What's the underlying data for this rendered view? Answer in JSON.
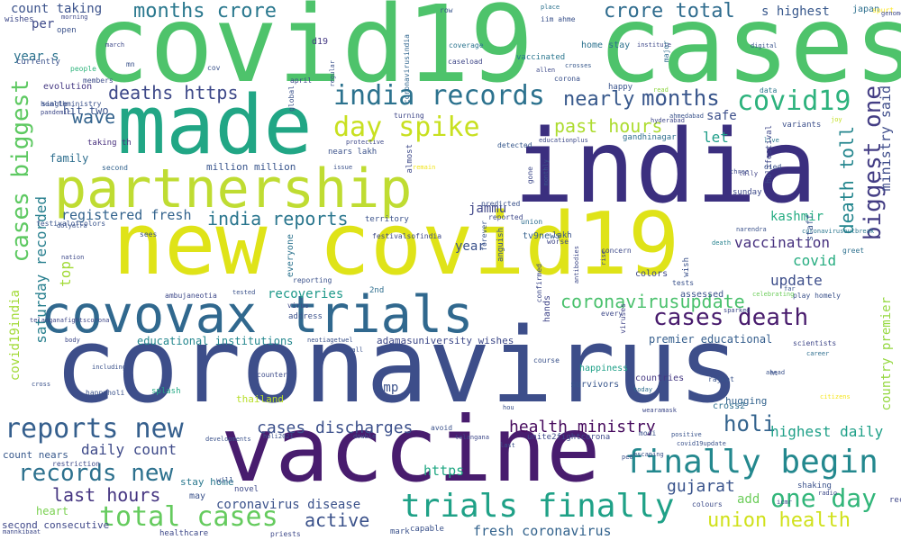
{
  "title": "",
  "words": [
    {
      "text": "covid19 cases",
      "color": "#4ec36b"
    },
    {
      "text": "india",
      "color": "#3b2f7f"
    },
    {
      "text": "made",
      "color": "#21a685"
    },
    {
      "text": "partnership",
      "color": "#bfdc32"
    },
    {
      "text": "new covid19",
      "color": "#dfe318"
    },
    {
      "text": "covovax trials",
      "color": "#30688e"
    },
    {
      "text": "coronavirus",
      "color": "#3d4e8a"
    },
    {
      "text": "vaccine",
      "color": "#481c6e"
    },
    {
      "text": "india records",
      "color": "#2c728e"
    },
    {
      "text": "day spike",
      "color": "#c8e020"
    },
    {
      "text": "months crore",
      "color": "#2a788e"
    },
    {
      "text": "crore total",
      "color": "#2f6c8e"
    },
    {
      "text": "s highest",
      "color": "#38588c"
    },
    {
      "text": "covid19",
      "color": "#2db27d"
    },
    {
      "text": "nearly",
      "color": "#38598c"
    },
    {
      "text": "months",
      "color": "#39568c"
    },
    {
      "text": "deaths https",
      "color": "#3e4989"
    },
    {
      "text": "wave",
      "color": "#33638d"
    },
    {
      "text": "hit two",
      "color": "#3a548c"
    },
    {
      "text": "past hours",
      "color": "#addc30"
    },
    {
      "text": "let",
      "color": "#1f9e89"
    },
    {
      "text": "safe",
      "color": "#3c4f8a"
    },
    {
      "text": "biggest one",
      "color": "#433d84"
    },
    {
      "text": "death toll",
      "color": "#24868e"
    },
    {
      "text": "ministry said",
      "color": "#3e4c8a"
    },
    {
      "text": "cases biggest",
      "color": "#5ec962"
    },
    {
      "text": "saturday recorded",
      "color": "#277f8e"
    },
    {
      "text": "covid19india",
      "color": "#a2da37"
    },
    {
      "text": "registered fresh",
      "color": "#33638d"
    },
    {
      "text": "india reports",
      "color": "#2a768e"
    },
    {
      "text": "jammu",
      "color": "#404688"
    },
    {
      "text": "kashmir",
      "color": "#25ac82"
    },
    {
      "text": "vaccination",
      "color": "#46307e"
    },
    {
      "text": "covid",
      "color": "#27ad81"
    },
    {
      "text": "update",
      "color": "#3d4e8a"
    },
    {
      "text": "coronavirusupdate",
      "color": "#4ac16d"
    },
    {
      "text": "cases death",
      "color": "#481b6d"
    },
    {
      "text": "country premier",
      "color": "#95d840"
    },
    {
      "text": "reports new",
      "color": "#355f8d"
    },
    {
      "text": "records new",
      "color": "#2d718e"
    },
    {
      "text": "finally begin",
      "color": "#23888e"
    },
    {
      "text": "health ministry",
      "color": "#460a5d"
    },
    {
      "text": "holi",
      "color": "#33638d"
    },
    {
      "text": "highest daily",
      "color": "#1fa088"
    },
    {
      "text": "cases discharges",
      "color": "#3c508b"
    },
    {
      "text": "daily count",
      "color": "#3e4a89"
    },
    {
      "text": "last hours",
      "color": "#453581"
    },
    {
      "text": "total cases",
      "color": "#65cb5e"
    },
    {
      "text": "trials finally",
      "color": "#1fa187"
    },
    {
      "text": "one day",
      "color": "#32b67a"
    },
    {
      "text": "union health",
      "color": "#d0e11c"
    },
    {
      "text": "gujarat",
      "color": "#3a548c"
    },
    {
      "text": "add",
      "color": "#6ccd5a"
    },
    {
      "text": "active",
      "color": "#3b528b"
    },
    {
      "text": "coronavirus disease",
      "color": "#3b528b"
    },
    {
      "text": "fresh coronavirus",
      "color": "#33638d"
    },
    {
      "text": "https",
      "color": "#22a884"
    },
    {
      "text": "amp",
      "color": "#3b528b"
    },
    {
      "text": "recoveries",
      "color": "#1f998a"
    },
    {
      "text": "educational institutions",
      "color": "#24878e"
    },
    {
      "text": "premier educational",
      "color": "#355e8d"
    },
    {
      "text": "count taking",
      "color": "#3b528b"
    },
    {
      "text": "per",
      "color": "#3e4a89"
    },
    {
      "text": "year s",
      "color": "#2c738e"
    },
    {
      "text": "family",
      "color": "#2e6e8e"
    },
    {
      "text": "heart",
      "color": "#7ad151"
    },
    {
      "text": "second consecutive",
      "color": "#3f4889"
    },
    {
      "text": "count nears",
      "color": "#38598c"
    },
    {
      "text": "stay home",
      "color": "#2a788e"
    },
    {
      "text": "million million",
      "color": "#39558c"
    },
    {
      "text": "year",
      "color": "#3b528b"
    },
    {
      "text": "top",
      "color": "#a2da37"
    },
    {
      "text": "tv9news",
      "color": "#34608d"
    },
    {
      "text": "thailand",
      "color": "#b8de29"
    },
    {
      "text": "splash",
      "color": "#22a884"
    },
    {
      "text": "hands",
      "color": "#404588"
    },
    {
      "text": "taking th",
      "color": "#472e7c"
    },
    {
      "text": "second",
      "color": "#33638d"
    },
    {
      "text": "evolution",
      "color": "#453882"
    },
    {
      "text": "people",
      "color": "#2fb47c"
    },
    {
      "text": "march",
      "color": "#3e4989"
    },
    {
      "text": "gandhinagar",
      "color": "#2e6f8e"
    },
    {
      "text": "home stay",
      "color": "#2c728e"
    },
    {
      "text": "happy",
      "color": "#3a548c"
    },
    {
      "text": "vaccinated",
      "color": "#2a768e"
    },
    {
      "text": "caseload",
      "color": "#3f4788"
    },
    {
      "text": "coverage",
      "color": "#2b748e"
    },
    {
      "text": "row",
      "color": "#39568c"
    },
    {
      "text": "d19",
      "color": "#443983"
    },
    {
      "text": "iim ahme",
      "color": "#3b528b"
    },
    {
      "text": "institute",
      "color": "#3e4989"
    },
    {
      "text": "digital",
      "color": "#3a548c"
    },
    {
      "text": "japan",
      "color": "#2d708e"
    },
    {
      "text": "spurt",
      "color": "#fde725"
    },
    {
      "text": "place",
      "color": "#2c728e"
    },
    {
      "text": "coronavirusindia",
      "color": "#31668e"
    },
    {
      "text": "allen",
      "color": "#3e4a89"
    },
    {
      "text": "crosses",
      "color": "#38598c"
    },
    {
      "text": "major",
      "color": "#2e6d8e"
    },
    {
      "text": "corona",
      "color": "#3b528b"
    },
    {
      "text": "read",
      "color": "#8fd744"
    },
    {
      "text": "hyderabad",
      "color": "#3f4788"
    },
    {
      "text": "ahmedabad",
      "color": "#3a538b"
    },
    {
      "text": "data",
      "color": "#2a778e"
    },
    {
      "text": "variants",
      "color": "#3c4f8a"
    },
    {
      "text": "joy",
      "color": "#c2df23"
    },
    {
      "text": "live",
      "color": "#2a788e"
    },
    {
      "text": "holifestival",
      "color": "#3f4889"
    },
    {
      "text": "tally",
      "color": "#414487"
    },
    {
      "text": "coronavirusoutbreak",
      "color": "#2a768e"
    },
    {
      "text": "died",
      "color": "#3b528b"
    },
    {
      "text": "three",
      "color": "#3e4c8a"
    },
    {
      "text": "sunday",
      "color": "#3e4a89"
    },
    {
      "text": "death",
      "color": "#26828e"
    },
    {
      "text": "far",
      "color": "#3a548c"
    },
    {
      "text": "greet",
      "color": "#2d708e"
    },
    {
      "text": "staff",
      "color": "#39568c"
    },
    {
      "text": "play homely",
      "color": "#3b528b"
    },
    {
      "text": "celebrating",
      "color": "#6ccd5a"
    },
    {
      "text": "sparked",
      "color": "#3e4989"
    },
    {
      "text": "scientists",
      "color": "#3f4788"
    },
    {
      "text": "career",
      "color": "#2e6e8e"
    },
    {
      "text": "ahead",
      "color": "#3b528b"
    },
    {
      "text": "citizens",
      "color": "#f6e620"
    },
    {
      "text": "recorded",
      "color": "#3f4788"
    },
    {
      "text": "shaking",
      "color": "#3b528b"
    },
    {
      "text": "colours",
      "color": "#3e4c8a"
    },
    {
      "text": "hugging",
      "color": "#33638d"
    },
    {
      "text": "rajkot",
      "color": "#3a548c"
    },
    {
      "text": "countries",
      "color": "#453882"
    },
    {
      "text": "today",
      "color": "#2e6e8e"
    },
    {
      "text": "survivors",
      "color": "#39568c"
    },
    {
      "text": "happiness",
      "color": "#1fa088"
    },
    {
      "text": "course",
      "color": "#3b528b"
    },
    {
      "text": "colors",
      "color": "#3e4989"
    },
    {
      "text": "wish",
      "color": "#3b528b"
    },
    {
      "text": "viruses",
      "color": "#414487"
    },
    {
      "text": "concern",
      "color": "#3e4a89"
    },
    {
      "text": "worse",
      "color": "#3f4788"
    },
    {
      "text": "assessed",
      "color": "#3b528b"
    },
    {
      "text": "lakh",
      "color": "#3a548c"
    },
    {
      "text": "gone",
      "color": "#3e4989"
    },
    {
      "text": "union",
      "color": "#2e6e8e"
    },
    {
      "text": "reported",
      "color": "#3e4989"
    },
    {
      "text": "predicted",
      "color": "#3b528b"
    },
    {
      "text": "detected",
      "color": "#38598c"
    },
    {
      "text": "educationplus",
      "color": "#3e4a89"
    },
    {
      "text": "monthly",
      "color": "#3a548c"
    },
    {
      "text": "turning",
      "color": "#3f4788"
    },
    {
      "text": "nears lakh",
      "color": "#3b528b"
    },
    {
      "text": "almost",
      "color": "#3e4a89"
    },
    {
      "text": "remain",
      "color": "#f1e51d"
    },
    {
      "text": "territory",
      "color": "#3b528b"
    },
    {
      "text": "festivalsofindia",
      "color": "#3e4989"
    },
    {
      "text": "address",
      "color": "#3b528b"
    },
    {
      "text": "everyone",
      "color": "#2c738e"
    },
    {
      "text": "2nd",
      "color": "#2e6e8e"
    },
    {
      "text": "anguish",
      "color": "#3b528b"
    },
    {
      "text": "forever",
      "color": "#3a548c"
    },
    {
      "text": "every",
      "color": "#3e4989"
    },
    {
      "text": "adamasuniversity wishes",
      "color": "#3e4989"
    },
    {
      "text": "neotiagetwel",
      "color": "#3b528b"
    },
    {
      "text": "ambujaneotia",
      "color": "#3e4989"
    },
    {
      "text": "telanganafightscorona",
      "color": "#3f4788"
    },
    {
      "text": "festivalofcolors",
      "color": "#3a548c"
    },
    {
      "text": "dolyatra",
      "color": "#3b528b"
    },
    {
      "text": "nation",
      "color": "#3e4a89"
    },
    {
      "text": "sees",
      "color": "#3b528b"
    },
    {
      "text": "body",
      "color": "#3e4989"
    },
    {
      "text": "including",
      "color": "#3b528b"
    },
    {
      "text": "counter",
      "color": "#3e4c8a"
    },
    {
      "text": "happyholi",
      "color": "#3b528b"
    },
    {
      "text": "cross",
      "color": "#3b528b"
    },
    {
      "text": "restriction",
      "color": "#3e4a89"
    },
    {
      "text": "developments",
      "color": "#3b528b"
    },
    {
      "text": "holi2021",
      "color": "#3b528b"
    },
    {
      "text": "double",
      "color": "#3b528b"
    },
    {
      "text": "telangana",
      "color": "#3e4989"
    },
    {
      "text": "avoid",
      "color": "#3b528b"
    },
    {
      "text": "unite2fightcorona",
      "color": "#3e4a89"
    },
    {
      "text": "last",
      "color": "#3b528b"
    },
    {
      "text": "positive",
      "color": "#3a548c"
    },
    {
      "text": "covid19update",
      "color": "#3b528b"
    },
    {
      "text": "wearamask",
      "color": "#3e4989"
    },
    {
      "text": "cross2",
      "color": "#2e6e8e"
    },
    {
      "text": "hou",
      "color": "#3b528b"
    },
    {
      "text": "escaping",
      "color": "#3b528b"
    },
    {
      "text": "navirus",
      "color": "#3e4989"
    },
    {
      "text": "pe0",
      "color": "#3b528b"
    },
    {
      "text": "healthcare",
      "color": "#3e4989"
    },
    {
      "text": "mark",
      "color": "#3b528b"
    },
    {
      "text": "capable",
      "color": "#3b528b"
    },
    {
      "text": "priests",
      "color": "#3e4989"
    },
    {
      "text": "mannkibaat",
      "color": "#3e4989"
    },
    {
      "text": "may",
      "color": "#3b528b"
    },
    {
      "text": "will",
      "color": "#3b528b"
    },
    {
      "text": "novel",
      "color": "#3e4a89"
    },
    {
      "text": "healthministry",
      "color": "#3b528b"
    },
    {
      "text": "pandemic",
      "color": "#3e4989"
    },
    {
      "text": "single",
      "color": "#3b528b"
    },
    {
      "text": "members",
      "color": "#3e4c8a"
    },
    {
      "text": "currently",
      "color": "#3b528b"
    },
    {
      "text": "wishes",
      "color": "#3e4989"
    },
    {
      "text": "mn",
      "color": "#3b528b"
    },
    {
      "text": "cov",
      "color": "#3b528b"
    },
    {
      "text": "april",
      "color": "#3e4989"
    },
    {
      "text": "global",
      "color": "#3b528b"
    },
    {
      "text": "reporting",
      "color": "#3b528b"
    },
    {
      "text": "virus",
      "color": "#3e4989"
    },
    {
      "text": "open",
      "color": "#3b528b"
    },
    {
      "text": "morning",
      "color": "#3e4989"
    },
    {
      "text": "regular",
      "color": "#3b528b"
    },
    {
      "text": "protective",
      "color": "#3e4989"
    },
    {
      "text": "issue",
      "color": "#3b528b"
    },
    {
      "text": "antibodies",
      "color": "#3e4989"
    },
    {
      "text": "narendra",
      "color": "#3b528b"
    },
    {
      "text": "genome",
      "color": "#3e4989"
    },
    {
      "text": "modi",
      "color": "#3b528b"
    },
    {
      "text": "radio",
      "color": "#3e4989"
    },
    {
      "text": "ht",
      "color": "#3b528b"
    },
    {
      "text": "icmr",
      "color": "#3e4989"
    },
    {
      "text": "tests",
      "color": "#3b528b"
    },
    {
      "text": "rise",
      "color": "#3e4989"
    },
    {
      "text": "tested",
      "color": "#3b528b"
    },
    {
      "text": "confirmed",
      "color": "#3e4989"
    },
    {
      "text": "small",
      "color": "#3b528b"
    }
  ]
}
